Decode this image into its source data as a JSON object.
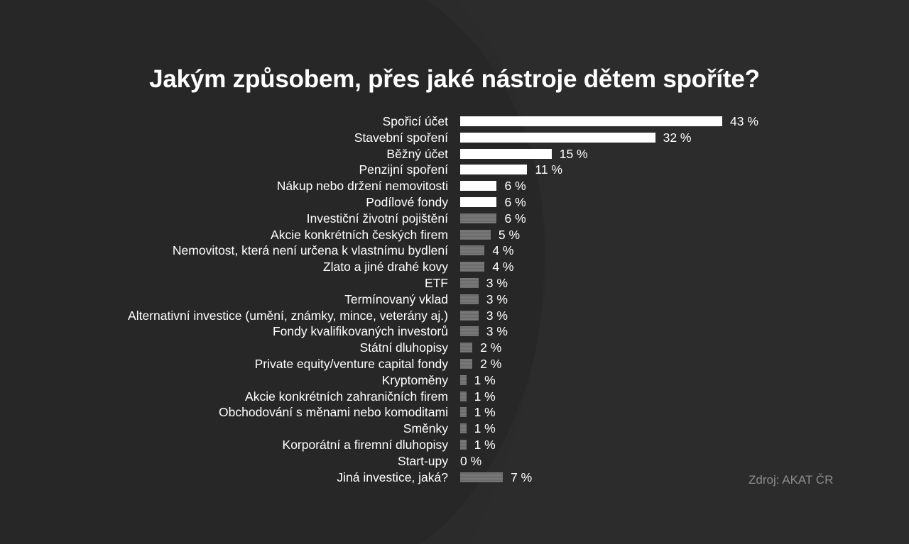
{
  "colors": {
    "background": "#272727",
    "primary_bar": "#ffffff",
    "secondary_bar": "#7a7a7a",
    "source_text": "#8c8c8c"
  },
  "source": "Zdroj: AKAT ČR",
  "chart_data": {
    "type": "bar",
    "orientation": "horizontal",
    "title": "Jakým způsobem, přes jaké nástroje dětem spoříte?",
    "unit": "%",
    "categories": [
      "Spořicí účet",
      "Stavební spoření",
      "Běžný účet",
      "Penzijní spoření",
      "Nákup nebo držení nemovitosti",
      "Podílové fondy",
      "Investiční životní pojištění",
      "Akcie konkrétních českých firem",
      "Nemovitost, která není určena k vlastnímu bydlení",
      "Zlato a jiné drahé kovy",
      "ETF",
      "Termínovaný vklad",
      "Alternativní investice (umění, známky, mince, veterány aj.)",
      "Fondy kvalifikovaných investorů",
      "Státní dluhopisy",
      "Private equity/venture capital fondy",
      "Kryptoměny",
      "Akcie konkrétních zahraničních firem",
      "Obchodování s měnami nebo komoditami",
      "Směnky",
      "Korporátní a firemní dluhopisy",
      "Start-upy",
      "Jiná investice, jaká?"
    ],
    "values": [
      43,
      32,
      15,
      11,
      6,
      6,
      6,
      5,
      4,
      4,
      3,
      3,
      3,
      3,
      2,
      2,
      1,
      1,
      1,
      1,
      1,
      0,
      7
    ],
    "value_labels": [
      "43 %",
      "32 %",
      "15 %",
      "11 %",
      "6 %",
      "6 %",
      "6 %",
      "5 %",
      "4 %",
      "4 %",
      "3 %",
      "3 %",
      "3 %",
      "3 %",
      "2 %",
      "2 %",
      "1 %",
      "1 %",
      "1 %",
      "1 %",
      "1 %",
      "0 %",
      "7 %"
    ],
    "highlighted": [
      true,
      true,
      true,
      true,
      true,
      true,
      false,
      false,
      false,
      false,
      false,
      false,
      false,
      false,
      false,
      false,
      false,
      false,
      false,
      false,
      false,
      false,
      false
    ],
    "xlim": [
      0,
      43
    ]
  }
}
